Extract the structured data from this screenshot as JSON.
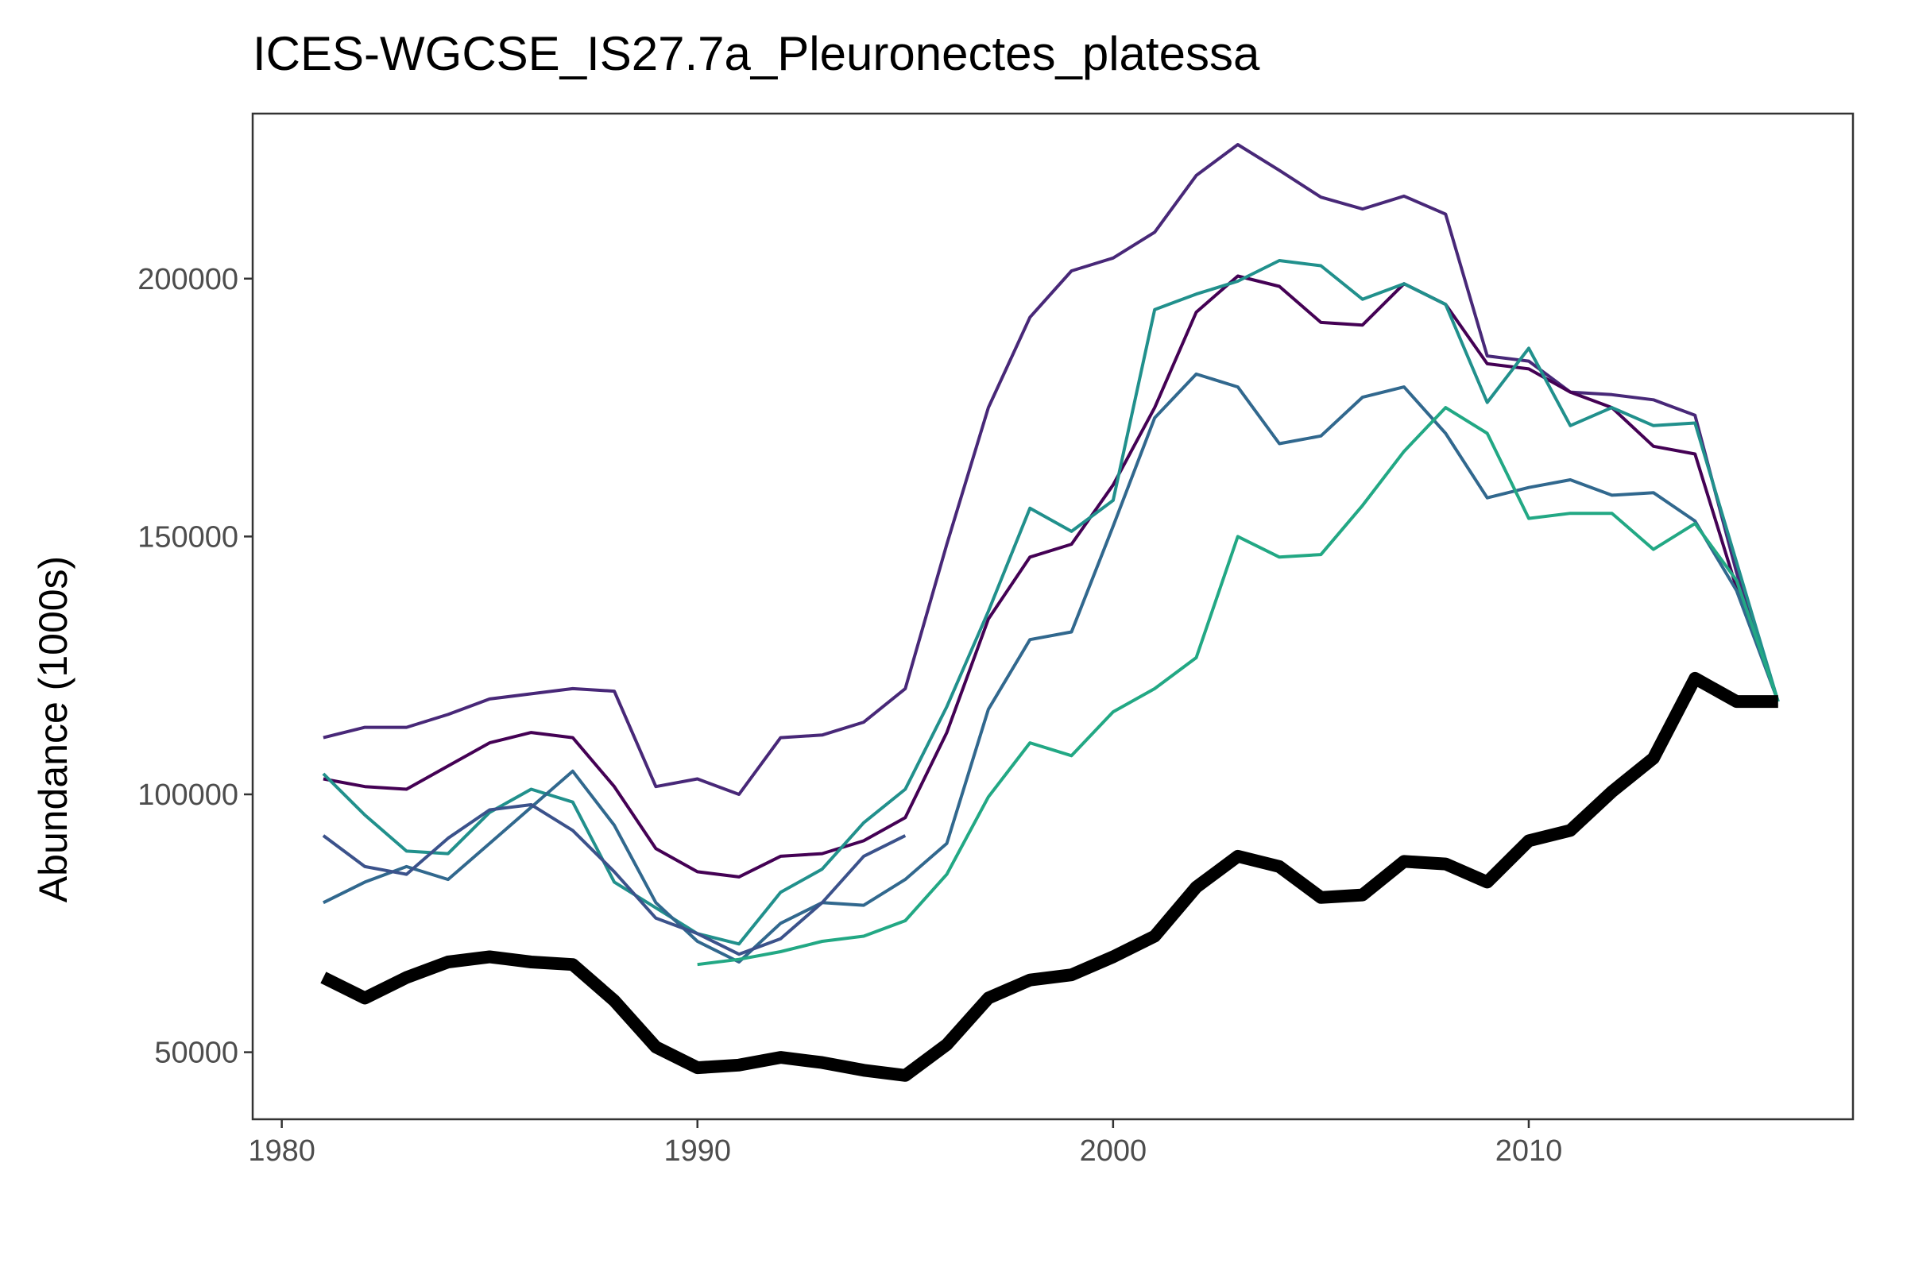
{
  "chart_data": {
    "type": "line",
    "title": "ICES-WGCSE_IS27.7a_Pleuronectes_platessa",
    "xlabel": "",
    "ylabel": "Abundance (1000s)",
    "xlim": [
      1979.3,
      2017.8
    ],
    "ylim": [
      37000,
      232000
    ],
    "x_ticks": [
      1980,
      1990,
      2000,
      2010
    ],
    "y_ticks": [
      50000,
      100000,
      150000,
      200000
    ],
    "x_tick_labels": [
      "1980",
      "1990",
      "2000",
      "2010"
    ],
    "y_tick_labels": [
      "50000",
      "100000",
      "150000",
      "200000"
    ],
    "grid": false,
    "legend": "none",
    "x": [
      1981,
      1982,
      1983,
      1984,
      1985,
      1986,
      1987,
      1988,
      1989,
      1990,
      1991,
      1992,
      1993,
      1994,
      1995,
      1996,
      1997,
      1998,
      1999,
      2000,
      2001,
      2002,
      2003,
      2004,
      2005,
      2006,
      2007,
      2008,
      2009,
      2010,
      2011,
      2012,
      2013,
      2014,
      2015,
      2016
    ],
    "series": [
      {
        "color": "#482878",
        "width": 4,
        "values": [
          111000,
          113000,
          113000,
          115500,
          118500,
          119500,
          120500,
          120000,
          101500,
          103000,
          100000,
          111000,
          111500,
          114000,
          120500,
          148500,
          175000,
          192500,
          201500,
          204000,
          209000,
          220000,
          226000,
          221000,
          215800,
          213500,
          216000,
          212500,
          185000,
          184000,
          178000,
          177500,
          176500,
          173500,
          143000,
          118000
        ]
      },
      {
        "color": "#440154",
        "width": 4,
        "values": [
          103000,
          101500,
          101000,
          105500,
          110000,
          112000,
          111000,
          101500,
          89500,
          85000,
          84000,
          88000,
          88500,
          91000,
          95500,
          112000,
          134000,
          146000,
          148500,
          160000,
          175000,
          193500,
          200500,
          198500,
          191500,
          191000,
          199000,
          195000,
          183500,
          182500,
          178000,
          175000,
          167500,
          166000,
          140000,
          118000
        ]
      },
      {
        "color": "#21908c",
        "width": 4,
        "values": [
          104000,
          96000,
          89000,
          88500,
          96500,
          101000,
          98500,
          83000,
          78000,
          73000,
          71000,
          81000,
          85500,
          94500,
          101000,
          117000,
          135500,
          155500,
          151000,
          157000,
          194000,
          197000,
          199500,
          203500,
          202500,
          196000,
          199000,
          195000,
          176000,
          186500,
          171500,
          175000,
          171500,
          172000,
          145000,
          118000
        ]
      },
      {
        "color": "#31688e",
        "width": 4,
        "values": [
          79000,
          83000,
          86000,
          83500,
          90500,
          97500,
          104500,
          94000,
          79000,
          71500,
          67500,
          75000,
          79000,
          78500,
          83500,
          90500,
          116500,
          130000,
          131500,
          152000,
          173000,
          181500,
          179000,
          168000,
          169500,
          177000,
          179000,
          170000,
          157500,
          159500,
          161000,
          158000,
          158500,
          153000,
          139500,
          118000
        ]
      },
      {
        "color": "#3b528b",
        "width": 4,
        "values": [
          92000,
          86000,
          84500,
          91500,
          97000,
          98000,
          93000,
          85000,
          76000,
          73000,
          69000,
          72000,
          79000,
          88000,
          92000,
          null,
          null,
          null,
          null,
          null,
          null,
          null,
          null,
          null,
          null,
          null,
          null,
          null,
          null,
          null,
          null,
          null,
          null,
          null,
          null,
          null
        ]
      },
      {
        "color": "#22a884",
        "width": 4,
        "values": [
          null,
          null,
          null,
          null,
          null,
          null,
          null,
          null,
          null,
          67000,
          68000,
          69500,
          71500,
          72500,
          75500,
          84500,
          99500,
          110000,
          107500,
          116000,
          120500,
          126500,
          150000,
          146000,
          146500,
          156000,
          166500,
          175000,
          170000,
          153500,
          154500,
          154500,
          147500,
          152500,
          141500,
          118000
        ]
      },
      {
        "color": "#000000",
        "width": 16,
        "values": [
          64500,
          60500,
          64500,
          67500,
          68500,
          67500,
          67000,
          60000,
          51000,
          47000,
          47500,
          49000,
          48000,
          46500,
          45500,
          51500,
          60500,
          64000,
          65000,
          68500,
          72500,
          82000,
          88000,
          86000,
          80000,
          80500,
          87000,
          86500,
          83000,
          91000,
          93000,
          100500,
          107000,
          122500,
          118000,
          118000
        ]
      }
    ]
  }
}
